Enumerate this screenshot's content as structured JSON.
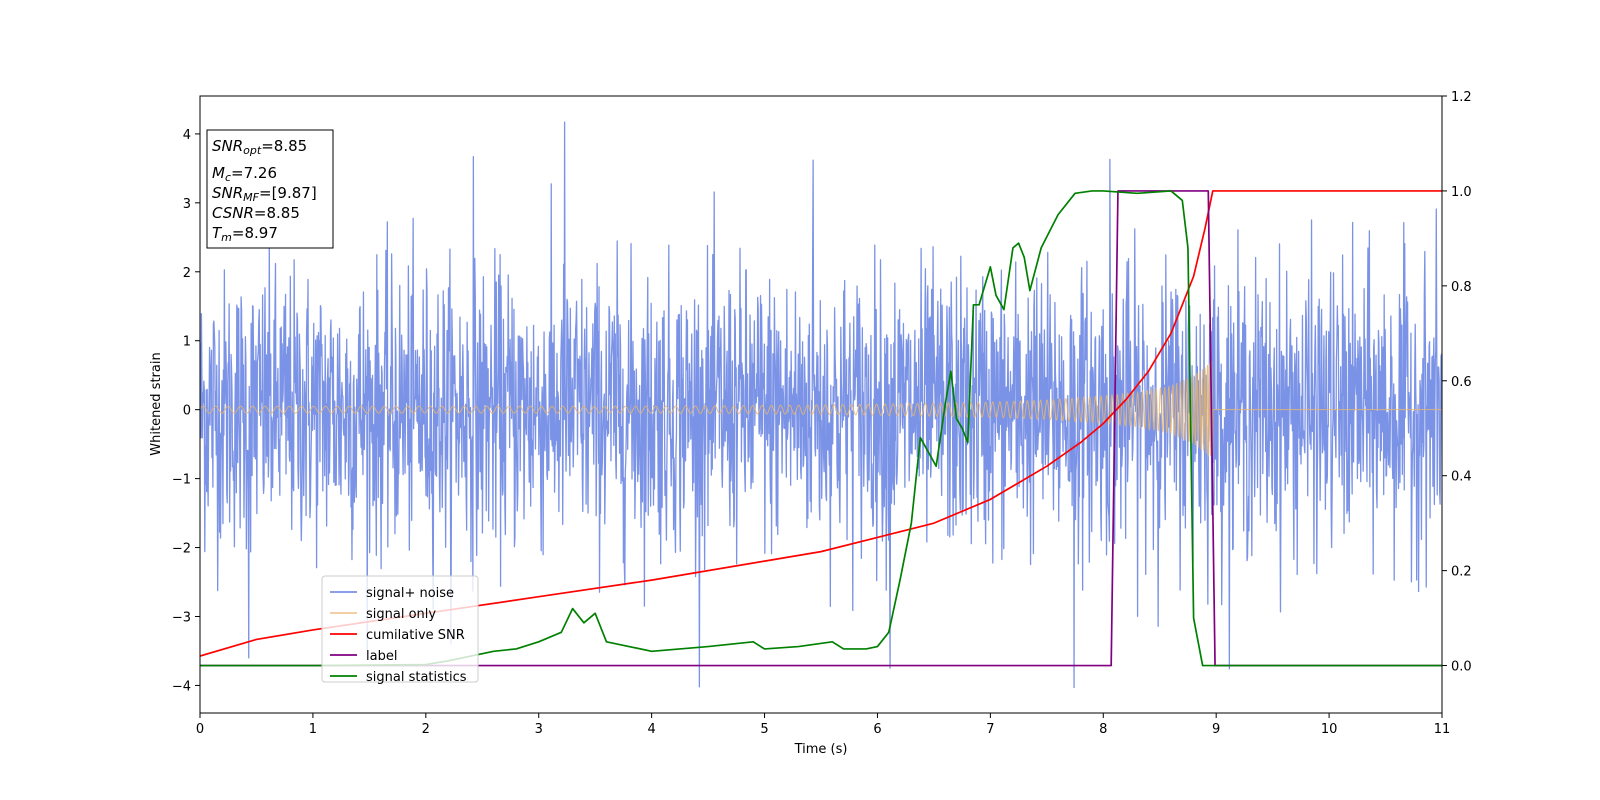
{
  "chart_data": {
    "type": "line",
    "xlabel": "Time (s)",
    "ylabel": "Whitened strain",
    "xlim": [
      0,
      11
    ],
    "ylim_left": [
      -4.4,
      4.55
    ],
    "ylim_right": [
      -0.1,
      1.2
    ],
    "x_ticks": [
      "0",
      "1",
      "2",
      "3",
      "4",
      "5",
      "6",
      "7",
      "8",
      "9",
      "10",
      "11"
    ],
    "y_ticks_left": [
      "−4",
      "−3",
      "−2",
      "−1",
      "0",
      "1",
      "2",
      "3",
      "4"
    ],
    "y_ticks_right": [
      "0.0",
      "0.2",
      "0.4",
      "0.6",
      "0.8",
      "1.0",
      "1.2"
    ],
    "legend_position": "lower-left",
    "info_box": [
      {
        "main": "SNR",
        "sub": "opt",
        "value": "=8.85"
      },
      {
        "main": "M",
        "sub": "c",
        "value": "=7.26"
      },
      {
        "main": "SNR",
        "sub": "MF",
        "value": "=[9.87]"
      },
      {
        "main": "CSNR",
        "sub": "",
        "value": "=8.85"
      },
      {
        "main": "T",
        "sub": "m",
        "value": "=8.97"
      }
    ],
    "series": [
      {
        "name": "signal+ noise",
        "axis": "left",
        "color": "#7b93e6",
        "kind": "noise",
        "noise_sigma": 1.0,
        "x_end": 11,
        "extremes": [
          [
            3.23,
            4.17
          ],
          [
            7.74,
            -4.03
          ],
          [
            6.11,
            -3.75
          ],
          [
            0.43,
            -3.6
          ],
          [
            2.42,
            3.67
          ],
          [
            5.43,
            3.62
          ],
          [
            8.06,
            3.63
          ]
        ]
      },
      {
        "name": "signal only",
        "axis": "left",
        "color": "#e8b56d",
        "kind": "chirp",
        "x_end": 8.97,
        "envelope": [
          [
            0,
            0.05
          ],
          [
            2,
            0.05
          ],
          [
            4,
            0.05
          ],
          [
            5,
            0.06
          ],
          [
            6,
            0.08
          ],
          [
            7,
            0.11
          ],
          [
            7.5,
            0.14
          ],
          [
            8,
            0.2
          ],
          [
            8.3,
            0.25
          ],
          [
            8.6,
            0.35
          ],
          [
            8.8,
            0.5
          ],
          [
            8.9,
            0.62
          ],
          [
            8.97,
            0.75
          ]
        ]
      },
      {
        "name": "cumilative SNR",
        "axis": "right",
        "color": "#ff0000",
        "points": [
          [
            0,
            0.02
          ],
          [
            0.5,
            0.055
          ],
          [
            1,
            0.075
          ],
          [
            2,
            0.11
          ],
          [
            3,
            0.145
          ],
          [
            4,
            0.18
          ],
          [
            5,
            0.22
          ],
          [
            5.5,
            0.24
          ],
          [
            6,
            0.27
          ],
          [
            6.5,
            0.3
          ],
          [
            7,
            0.35
          ],
          [
            7.5,
            0.42
          ],
          [
            7.8,
            0.47
          ],
          [
            8,
            0.51
          ],
          [
            8.2,
            0.56
          ],
          [
            8.4,
            0.62
          ],
          [
            8.6,
            0.7
          ],
          [
            8.8,
            0.82
          ],
          [
            8.9,
            0.92
          ],
          [
            8.97,
            1.0
          ],
          [
            11,
            1.0
          ]
        ]
      },
      {
        "name": "label",
        "axis": "right",
        "color": "#800080",
        "points": [
          [
            0,
            0
          ],
          [
            8.07,
            0
          ],
          [
            8.13,
            1.0
          ],
          [
            8.93,
            1.0
          ],
          [
            8.99,
            0
          ],
          [
            11,
            0
          ]
        ]
      },
      {
        "name": "signal statistics",
        "axis": "right",
        "color": "#008000",
        "points": [
          [
            0,
            0.0
          ],
          [
            1.0,
            0.0
          ],
          [
            2.0,
            0.002
          ],
          [
            2.2,
            0.01
          ],
          [
            2.4,
            0.02
          ],
          [
            2.6,
            0.03
          ],
          [
            2.8,
            0.035
          ],
          [
            3.0,
            0.05
          ],
          [
            3.2,
            0.07
          ],
          [
            3.3,
            0.12
          ],
          [
            3.4,
            0.09
          ],
          [
            3.5,
            0.11
          ],
          [
            3.6,
            0.05
          ],
          [
            3.8,
            0.04
          ],
          [
            4.0,
            0.03
          ],
          [
            4.5,
            0.04
          ],
          [
            4.9,
            0.05
          ],
          [
            5.0,
            0.035
          ],
          [
            5.3,
            0.04
          ],
          [
            5.6,
            0.05
          ],
          [
            5.7,
            0.035
          ],
          [
            5.9,
            0.035
          ],
          [
            6.0,
            0.04
          ],
          [
            6.1,
            0.07
          ],
          [
            6.2,
            0.18
          ],
          [
            6.3,
            0.3
          ],
          [
            6.38,
            0.48
          ],
          [
            6.45,
            0.45
          ],
          [
            6.52,
            0.42
          ],
          [
            6.6,
            0.55
          ],
          [
            6.65,
            0.62
          ],
          [
            6.7,
            0.52
          ],
          [
            6.75,
            0.5
          ],
          [
            6.8,
            0.47
          ],
          [
            6.85,
            0.76
          ],
          [
            6.9,
            0.76
          ],
          [
            6.95,
            0.8
          ],
          [
            7.0,
            0.84
          ],
          [
            7.05,
            0.78
          ],
          [
            7.12,
            0.75
          ],
          [
            7.2,
            0.88
          ],
          [
            7.25,
            0.89
          ],
          [
            7.3,
            0.86
          ],
          [
            7.35,
            0.79
          ],
          [
            7.45,
            0.88
          ],
          [
            7.6,
            0.95
          ],
          [
            7.75,
            0.995
          ],
          [
            7.9,
            1.0
          ],
          [
            8.0,
            1.0
          ],
          [
            8.3,
            0.995
          ],
          [
            8.6,
            1.0
          ],
          [
            8.7,
            0.98
          ],
          [
            8.75,
            0.88
          ],
          [
            8.8,
            0.1
          ],
          [
            8.88,
            0.0
          ],
          [
            11,
            0.0
          ]
        ]
      }
    ]
  }
}
